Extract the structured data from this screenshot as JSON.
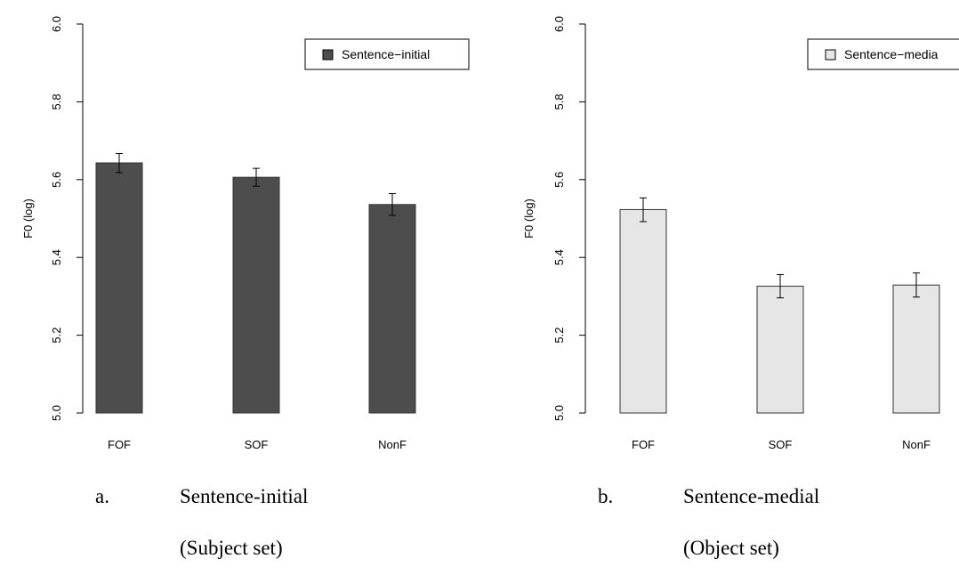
{
  "colors": {
    "dark_bar": "#4d4d4d",
    "light_bar": "#e6e6e6",
    "bar_stroke": "#333333"
  },
  "chart_data": [
    {
      "type": "bar",
      "categories": [
        "FOF",
        "SOF",
        "NonF"
      ],
      "values": [
        5.643,
        5.606,
        5.536
      ],
      "error_lower": [
        5.618,
        5.583,
        5.508
      ],
      "error_upper": [
        5.667,
        5.629,
        5.564
      ],
      "ylabel": "F0 (log)",
      "ylim": [
        5.0,
        6.0
      ],
      "yticks": [
        "5.0",
        "5.2",
        "5.4",
        "5.6",
        "5.8",
        "6.0"
      ],
      "legend": "Sentence−initial",
      "legend_position": "top-right",
      "bar_color": "#4d4d4d",
      "caption_letter": "a.",
      "caption_line1": "Sentence-initial",
      "caption_line2": "(Subject set)"
    },
    {
      "type": "bar",
      "categories": [
        "FOF",
        "SOF",
        "NonF"
      ],
      "values": [
        5.523,
        5.326,
        5.329
      ],
      "error_lower": [
        5.492,
        5.296,
        5.298
      ],
      "error_upper": [
        5.553,
        5.356,
        5.36
      ],
      "ylabel": "F0 (log)",
      "ylim": [
        5.0,
        6.0
      ],
      "yticks": [
        "5.0",
        "5.2",
        "5.4",
        "5.6",
        "5.8",
        "6.0"
      ],
      "legend": "Sentence−media",
      "legend_position": "top-right",
      "bar_color": "#e6e6e6",
      "caption_letter": "b.",
      "caption_line1": "Sentence-medial",
      "caption_line2": "(Object set)"
    }
  ]
}
